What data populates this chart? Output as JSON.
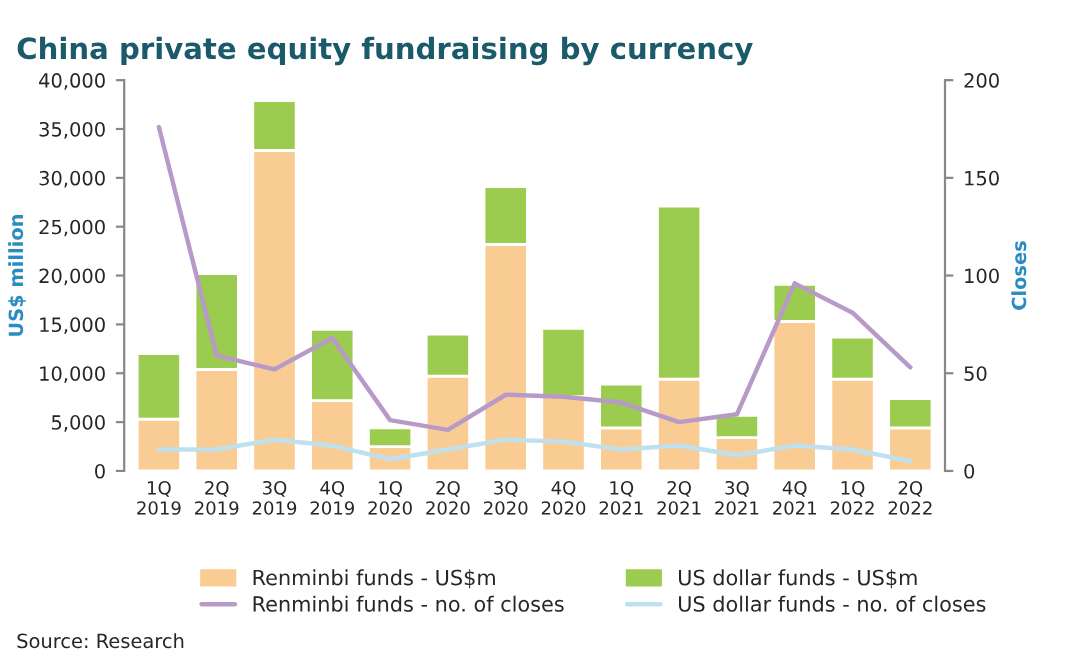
{
  "chart_data": {
    "type": "bar",
    "stacked": true,
    "title": "China private equity fundraising by currency",
    "ylabel": "US$ million",
    "y2label": "Closes",
    "categories": [
      "1Q\n2019",
      "2Q\n2019",
      "3Q\n2019",
      "4Q\n2019",
      "1Q\n2020",
      "2Q\n2020",
      "3Q\n2020",
      "4Q\n2020",
      "1Q\n2021",
      "2Q\n2021",
      "3Q\n2021",
      "4Q\n2021",
      "1Q\n2022",
      "2Q\n2022"
    ],
    "series": [
      {
        "name": "Renminbi funds - US$m",
        "color": "#f9cc94",
        "values": [
          5300,
          10400,
          32800,
          7200,
          2500,
          9700,
          23200,
          7600,
          4400,
          9400,
          3400,
          15300,
          9400,
          4400
        ]
      },
      {
        "name": "US dollar funds - US$m",
        "color": "#9ccc4f",
        "values": [
          6700,
          9800,
          5100,
          7300,
          1900,
          4300,
          5900,
          7000,
          4500,
          17700,
          2300,
          3800,
          4300,
          3000
        ]
      },
      {
        "name": "Renminbi funds - no. of closes",
        "type": "line",
        "axis": "y2",
        "color": "#b79ac8",
        "values": [
          176,
          59,
          52,
          68,
          26,
          21,
          39,
          38,
          35,
          25,
          29,
          96,
          81,
          53
        ]
      },
      {
        "name": "US dollar funds - no. of closes",
        "type": "line",
        "axis": "y2",
        "color": "#bfe0ee",
        "values": [
          11,
          11,
          16,
          13,
          6,
          11,
          16,
          15,
          11,
          13,
          8,
          13,
          11,
          5
        ]
      }
    ],
    "ylim": [
      0,
      40000
    ],
    "yticks": [
      0,
      {
        "value": 5000,
        "label": "5,000"
      },
      {
        "value": 10000,
        "label": "10,000"
      },
      {
        "value": 15000,
        "label": "15,000"
      },
      {
        "value": 20000,
        "label": "20,000"
      },
      {
        "value": 25000,
        "label": "25,000"
      },
      {
        "value": 30000,
        "label": "30,000"
      },
      {
        "value": 35000,
        "label": "35,000"
      },
      {
        "value": 40000,
        "label": "40,000"
      }
    ],
    "y2lim": [
      0,
      200
    ],
    "y2ticks": [
      0,
      50,
      100,
      150,
      200
    ],
    "grid": false,
    "legend": "bottom",
    "annotations": [
      "Source: Research"
    ]
  }
}
